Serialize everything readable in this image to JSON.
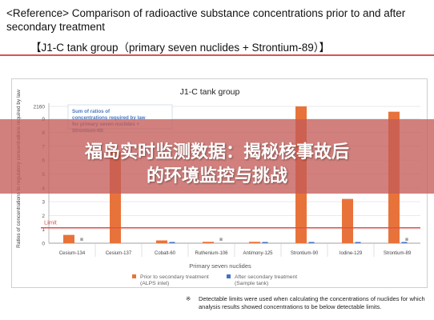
{
  "header": {
    "title": "<Reference> Comparison of radioactive substance concentrations prior to and after secondary treatment",
    "subtitle": "【J1-C tank group（primary seven nuclides + Strontium-89）】"
  },
  "banner": {
    "line1": "福岛实时监测数据：揭秘核事故后",
    "line2": "的环境监控与挑战"
  },
  "chart_data": {
    "type": "bar",
    "title": "J1-C tank group",
    "ylabel": "Ratios of concentrations to regulatory concentrations required by law",
    "xlabel": "Primary seven nuclides",
    "categories": [
      "Cesium-134",
      "Cesium-137",
      "Cobalt-60",
      "Ruthenium-106",
      "Antimony-125",
      "Strontium-90",
      "Iodine-129",
      "Strontium-89"
    ],
    "ytick_labels": [
      "0",
      "1",
      "2",
      "3",
      "4",
      "5",
      "6",
      "7",
      "8",
      "9",
      "2160"
    ],
    "ytick_values": [
      0,
      1,
      2,
      3,
      4,
      5,
      6,
      7,
      8,
      9,
      2160
    ],
    "series": [
      {
        "name": "Prior to secondary treatment (ALPS inlet)",
        "color": "#e8733a",
        "values": [
          0.6,
          6.6,
          0.2,
          0.1,
          0.1,
          2160,
          3.2,
          9.5
        ]
      },
      {
        "name": "After secondary treatment (Sample tank)",
        "color": "#4472c4",
        "values": [
          null,
          null,
          0.05,
          null,
          0.05,
          0.08,
          0.06,
          0.08
        ]
      }
    ],
    "markers": [
      "※",
      "",
      "",
      "※",
      "",
      "",
      "",
      "※"
    ],
    "limit": {
      "label": "Limit",
      "value": 1,
      "color": "#d9534f"
    },
    "annotation": "Sum of ratios of concentrations required by law for primary seven nuclides + Strontium-89:",
    "grid": true,
    "legend_position": "bottom"
  },
  "footnote": {
    "symbol": "※",
    "text": "Detectable limits were used when calculating the concentrations of nuclides for which analysis results showed concentrations to be below detectable limits."
  }
}
